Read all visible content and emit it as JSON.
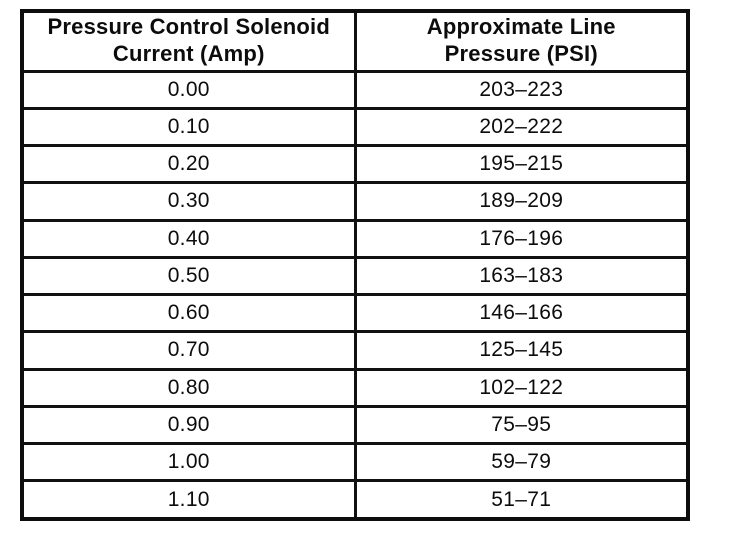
{
  "table": {
    "columns": [
      {
        "label": "Pressure Control Solenoid\nCurrent (Amp)"
      },
      {
        "label": "Approximate Line\nPressure (PSI)"
      }
    ],
    "rows": [
      {
        "current": "0.00",
        "pressure": "203–223"
      },
      {
        "current": "0.10",
        "pressure": "202–222"
      },
      {
        "current": "0.20",
        "pressure": "195–215"
      },
      {
        "current": "0.30",
        "pressure": "189–209"
      },
      {
        "current": "0.40",
        "pressure": "176–196"
      },
      {
        "current": "0.50",
        "pressure": "163–183"
      },
      {
        "current": "0.60",
        "pressure": "146–166"
      },
      {
        "current": "0.70",
        "pressure": "125–145"
      },
      {
        "current": "0.80",
        "pressure": "102–122"
      },
      {
        "current": "0.90",
        "pressure": "75–95"
      },
      {
        "current": "1.00",
        "pressure": "59–79"
      },
      {
        "current": "1.10",
        "pressure": "51–71"
      }
    ]
  },
  "chart_data": {
    "type": "table",
    "columns": [
      "Pressure Control Solenoid Current (Amp)",
      "Approximate Line Pressure (PSI)"
    ],
    "rows": [
      [
        "0.00",
        "203–223"
      ],
      [
        "0.10",
        "202–222"
      ],
      [
        "0.20",
        "195–215"
      ],
      [
        "0.30",
        "189–209"
      ],
      [
        "0.40",
        "176–196"
      ],
      [
        "0.50",
        "163–183"
      ],
      [
        "0.60",
        "146–166"
      ],
      [
        "0.70",
        "125–145"
      ],
      [
        "0.80",
        "102–122"
      ],
      [
        "0.90",
        "75–95"
      ],
      [
        "1.00",
        "59–79"
      ],
      [
        "1.10",
        "51–71"
      ]
    ]
  },
  "colors": {
    "ink": "#111111",
    "paper": "#ffffff"
  }
}
